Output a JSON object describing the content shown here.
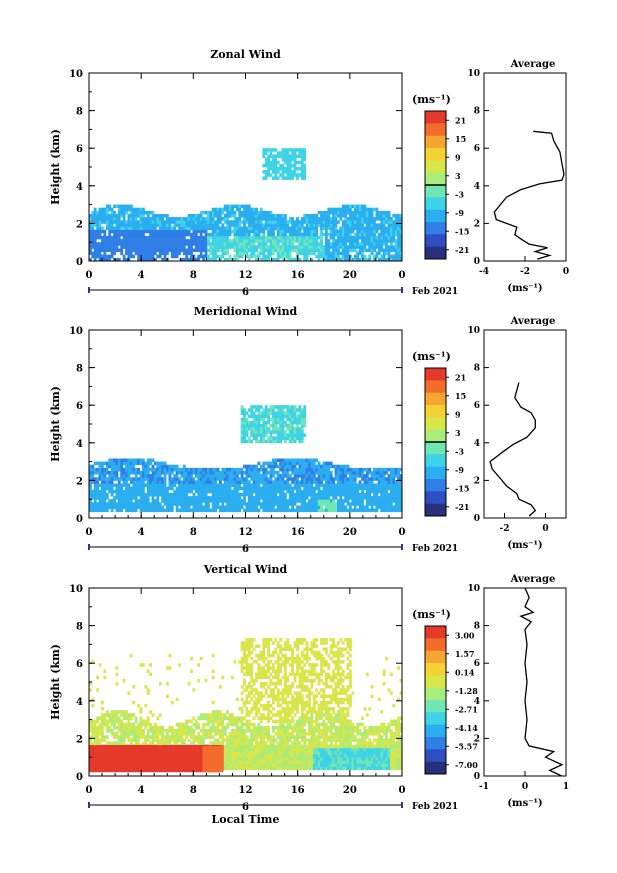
{
  "common": {
    "ylabel": "Height (km)",
    "xlabel": "Local Time",
    "x_ticks": [
      "0",
      "4",
      "8",
      "12",
      "16",
      "20",
      "0"
    ],
    "day_label": "6",
    "date_label": "Feb 2021",
    "unit_label": "(ms⁻¹)",
    "average_title": "Average",
    "avg_y_ticks": [
      "0",
      "2",
      "4",
      "6",
      "8",
      "10"
    ]
  },
  "chart_data": [
    {
      "type": "heatmap",
      "title": "Zonal Wind",
      "ylabel": "Height (km)",
      "xlim": [
        0,
        24
      ],
      "ylim": [
        0,
        10
      ],
      "y_ticks": [
        "0",
        "2",
        "4",
        "6",
        "8",
        "10"
      ],
      "colorbar": {
        "min": -24,
        "max": 24,
        "labels": [
          "21",
          "15",
          "9",
          "3",
          "-3",
          "-9",
          "-15",
          "-21"
        ],
        "zero_line": true
      },
      "average_profile": {
        "title": "Average",
        "xlim": [
          -4,
          0
        ],
        "x_ticks": [
          "-4",
          "-2",
          "0"
        ],
        "xlabel": "(ms⁻¹)",
        "points": [
          [
            -1.4,
            0.1
          ],
          [
            -0.8,
            0.3
          ],
          [
            -1.5,
            0.5
          ],
          [
            -0.9,
            0.7
          ],
          [
            -1.8,
            0.9
          ],
          [
            -2.1,
            1.1
          ],
          [
            -2.5,
            1.4
          ],
          [
            -2.4,
            1.8
          ],
          [
            -3.4,
            2.2
          ],
          [
            -3.5,
            2.6
          ],
          [
            -3.2,
            3.0
          ],
          [
            -2.9,
            3.4
          ],
          [
            -2.2,
            3.8
          ],
          [
            -1.3,
            4.1
          ],
          [
            -0.2,
            4.3
          ],
          [
            -0.1,
            4.6
          ],
          [
            -0.2,
            5.2
          ],
          [
            -0.3,
            5.8
          ],
          [
            -0.6,
            6.4
          ],
          [
            -0.7,
            6.8
          ],
          [
            -1.6,
            6.9
          ]
        ]
      }
    },
    {
      "type": "heatmap",
      "title": "Meridional Wind",
      "ylabel": "Height (km)",
      "xlim": [
        0,
        24
      ],
      "ylim": [
        0,
        10
      ],
      "y_ticks": [
        "0",
        "2",
        "4",
        "6",
        "8",
        "10"
      ],
      "colorbar": {
        "min": -24,
        "max": 24,
        "labels": [
          "21",
          "15",
          "9",
          "3",
          "-3",
          "-9",
          "-15",
          "-21"
        ],
        "zero_line": true
      },
      "average_profile": {
        "title": "Average",
        "xlim": [
          -3,
          1
        ],
        "x_ticks": [
          "-2",
          "0"
        ],
        "xlabel": "(ms⁻¹)",
        "points": [
          [
            -0.8,
            0.1
          ],
          [
            -0.5,
            0.4
          ],
          [
            -0.7,
            0.7
          ],
          [
            -1.3,
            1.0
          ],
          [
            -1.4,
            1.3
          ],
          [
            -1.9,
            1.7
          ],
          [
            -2.2,
            2.1
          ],
          [
            -2.6,
            2.6
          ],
          [
            -2.7,
            3.0
          ],
          [
            -2.1,
            3.5
          ],
          [
            -1.6,
            3.9
          ],
          [
            -0.9,
            4.3
          ],
          [
            -0.5,
            4.8
          ],
          [
            -0.5,
            5.2
          ],
          [
            -0.7,
            5.6
          ],
          [
            -1.2,
            5.9
          ],
          [
            -1.5,
            6.4
          ],
          [
            -1.3,
            7.2
          ]
        ]
      }
    },
    {
      "type": "heatmap",
      "title": "Vertical Wind",
      "ylabel": "Height (km)",
      "xlabel": "Local Time",
      "xlim": [
        0,
        24
      ],
      "ylim": [
        0,
        10
      ],
      "y_ticks": [
        "0",
        "2",
        "4",
        "6",
        "8",
        "10"
      ],
      "colorbar": {
        "min": -8.57,
        "max": 3.86,
        "labels": [
          "3.00",
          "1.57",
          "0.14",
          "-1.28",
          "-2.71",
          "-4.14",
          "-5.57",
          "-7.00"
        ],
        "zero_line": false
      },
      "average_profile": {
        "title": "Average",
        "xlim": [
          -1,
          1
        ],
        "x_ticks": [
          "-1",
          "0",
          "1"
        ],
        "xlabel": "(ms⁻¹)",
        "points": [
          [
            0.9,
            0.0
          ],
          [
            0.6,
            0.3
          ],
          [
            0.9,
            0.6
          ],
          [
            0.5,
            1.0
          ],
          [
            0.7,
            1.3
          ],
          [
            0.1,
            1.6
          ],
          [
            0.0,
            2.0
          ],
          [
            0.05,
            3.0
          ],
          [
            0.0,
            4.0
          ],
          [
            0.05,
            5.0
          ],
          [
            0.0,
            6.0
          ],
          [
            0.05,
            7.0
          ],
          [
            0.0,
            7.8
          ],
          [
            0.15,
            8.2
          ],
          [
            -0.1,
            8.5
          ],
          [
            0.2,
            8.7
          ],
          [
            0.0,
            9.0
          ],
          [
            0.1,
            9.5
          ],
          [
            0.0,
            10.0
          ]
        ]
      }
    }
  ],
  "colors": {
    "scale": [
      "#27307a",
      "#2e4fc4",
      "#2f7fe6",
      "#2aaef0",
      "#3fd3e8",
      "#6fe6b4",
      "#a9ec7a",
      "#d8e64a",
      "#f4d233",
      "#f6a531",
      "#f36c2c",
      "#e53a2a"
    ]
  }
}
